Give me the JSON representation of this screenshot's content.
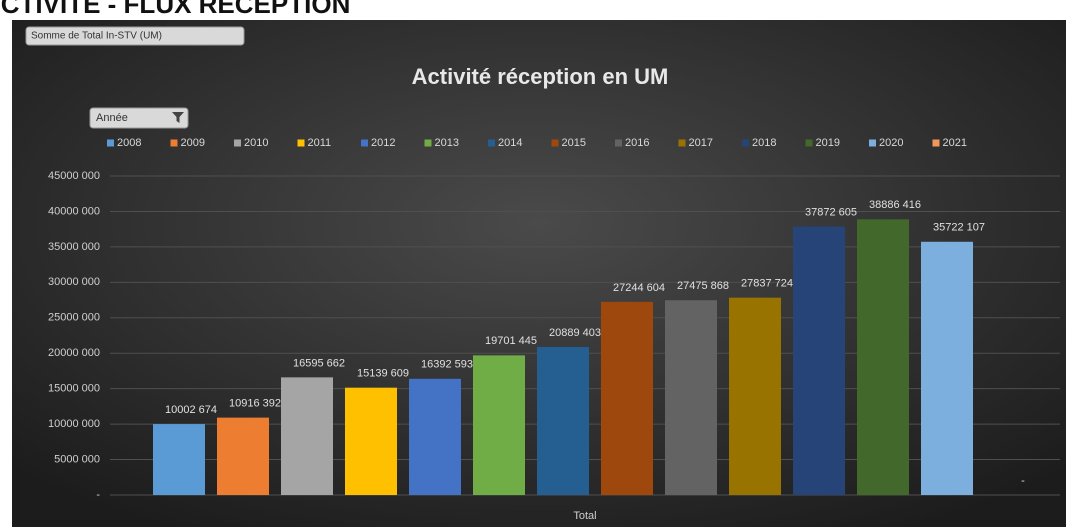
{
  "heading": "ACTIVITÉ - FLUX RÉCEPTION",
  "value_field": "Somme de Total In-STV (UM)",
  "filter_field": "Année",
  "chart_data": {
    "type": "bar",
    "title": "Activité réception en UM",
    "categories": [
      "Total"
    ],
    "ylim": [
      0,
      45000000
    ],
    "yticks": [
      {
        "value": 0,
        "label": "-"
      },
      {
        "value": 5000000,
        "label": "5000 000"
      },
      {
        "value": 10000000,
        "label": "10000 000"
      },
      {
        "value": 15000000,
        "label": "15000 000"
      },
      {
        "value": 20000000,
        "label": "20000 000"
      },
      {
        "value": 25000000,
        "label": "25000 000"
      },
      {
        "value": 30000000,
        "label": "30000 000"
      },
      {
        "value": 35000000,
        "label": "35000 000"
      },
      {
        "value": 40000000,
        "label": "40000 000"
      },
      {
        "value": 45000000,
        "label": "45000 000"
      }
    ],
    "grid": true,
    "legend": "top",
    "series": [
      {
        "name": "2008",
        "color": "#5b9bd5",
        "values": [
          10002674
        ],
        "value_labels": [
          "10002 674"
        ]
      },
      {
        "name": "2009",
        "color": "#ed7d31",
        "values": [
          10916392
        ],
        "value_labels": [
          "10916 392"
        ]
      },
      {
        "name": "2010",
        "color": "#a5a5a5",
        "values": [
          16595662
        ],
        "value_labels": [
          "16595 662"
        ]
      },
      {
        "name": "2011",
        "color": "#ffc000",
        "values": [
          15139609
        ],
        "value_labels": [
          "15139 609"
        ]
      },
      {
        "name": "2012",
        "color": "#4472c4",
        "values": [
          16392593
        ],
        "value_labels": [
          "16392 593"
        ]
      },
      {
        "name": "2013",
        "color": "#70ad47",
        "values": [
          19701445
        ],
        "value_labels": [
          "19701 445"
        ]
      },
      {
        "name": "2014",
        "color": "#255e91",
        "values": [
          20889403
        ],
        "value_labels": [
          "20889 403"
        ]
      },
      {
        "name": "2015",
        "color": "#9e480e",
        "values": [
          27244604
        ],
        "value_labels": [
          "27244 604"
        ]
      },
      {
        "name": "2016",
        "color": "#636363",
        "values": [
          27475868
        ],
        "value_labels": [
          "27475 868"
        ]
      },
      {
        "name": "2017",
        "color": "#997300",
        "values": [
          27837724
        ],
        "value_labels": [
          "27837 724"
        ]
      },
      {
        "name": "2018",
        "color": "#264478",
        "values": [
          37872605
        ],
        "value_labels": [
          "37872 605"
        ]
      },
      {
        "name": "2019",
        "color": "#43682b",
        "values": [
          38886416
        ],
        "value_labels": [
          "38886 416"
        ]
      },
      {
        "name": "2020",
        "color": "#7cafdd",
        "values": [
          35722107
        ],
        "value_labels": [
          "35722 107"
        ]
      },
      {
        "name": "2021",
        "color": "#f1975a",
        "values": [
          0
        ],
        "value_labels": [
          "-"
        ]
      }
    ]
  }
}
